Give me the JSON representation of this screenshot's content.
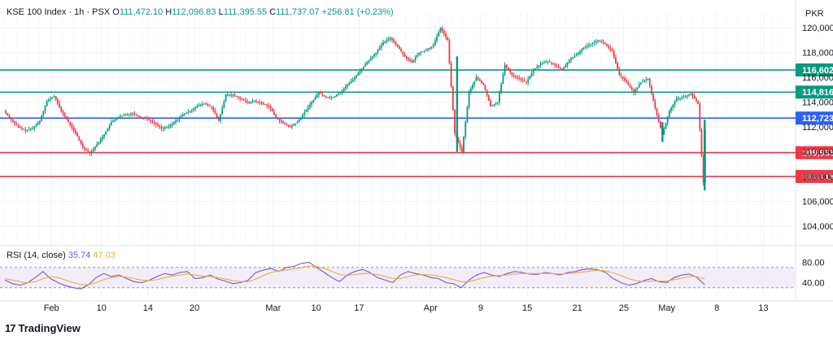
{
  "header": {
    "symbol": "KSE 100 Index · 1h · PSX",
    "open_label": "O",
    "open": "111,472.10",
    "high_label": "H",
    "high": "112,096.83",
    "low_label": "L",
    "low": "111,395.55",
    "close_label": "C",
    "close": "111,737.07",
    "change": "+256.81 (+0.23%)",
    "currency": "PKR"
  },
  "rsi_header": {
    "label": "RSI (14, close)",
    "rsi_value": "35.74",
    "ma_value": "47.03"
  },
  "brand": {
    "name": "TradingView",
    "mark": "17"
  },
  "colors": {
    "up": "#089981",
    "down": "#f23645",
    "green_level": "#089981",
    "blue_level": "#2962ff",
    "red_level": "#f23645",
    "rsi_line": "#7e57c2",
    "rsi_ma": "#e0b43a",
    "rsi_band": "#ede7f6",
    "grid": "#f2f3f5"
  },
  "chart_data": [
    {
      "type": "candlestick",
      "title": "KSE 100 Index · 1h · PSX",
      "ylabel": "PKR",
      "ylim": [
        102700,
        120800
      ],
      "y_ticks": [
        104000,
        106000,
        108000,
        110000,
        112000,
        114000,
        116000,
        118000,
        120000
      ],
      "y_tick_labels": [
        "104,000",
        "106,000",
        "108,000",
        "110,000",
        "112,000",
        "114,000",
        "116,000",
        "118,000",
        "120,000"
      ],
      "x_range": [
        0,
        98
      ],
      "x_ticks": [
        {
          "label": "Feb",
          "t": 6.5
        },
        {
          "label": "10",
          "t": 13.5
        },
        {
          "label": "14",
          "t": 20
        },
        {
          "label": "20",
          "t": 26.5
        },
        {
          "label": "Mar",
          "t": 37.5
        },
        {
          "label": "10",
          "t": 43.5
        },
        {
          "label": "17",
          "t": 49.5
        },
        {
          "label": "Apr",
          "t": 59.5
        },
        {
          "label": "9",
          "t": 66.5
        },
        {
          "label": "15",
          "t": 73
        },
        {
          "label": "21",
          "t": 80
        },
        {
          "label": "25",
          "t": 86.5
        },
        {
          "label": "May",
          "t": 92.5
        },
        {
          "label": "8",
          "t": 99.5
        },
        {
          "label": "13",
          "t": 106
        }
      ],
      "levels": [
        {
          "value": 116602,
          "label": "116,602",
          "color": "green"
        },
        {
          "value": 114816,
          "label": "114,816",
          "color": "green"
        },
        {
          "value": 112723,
          "label": "112,723",
          "color": "blue"
        },
        {
          "value": 109933,
          "label": "109,933",
          "color": "red"
        },
        {
          "value": 108015,
          "label": "108,015",
          "color": "red"
        }
      ],
      "close_path": [
        [
          0,
          113300
        ],
        [
          1,
          112600
        ],
        [
          2,
          112000
        ],
        [
          3,
          111700
        ],
        [
          4,
          111900
        ],
        [
          5,
          112500
        ],
        [
          6,
          114100
        ],
        [
          7,
          114500
        ],
        [
          8,
          113300
        ],
        [
          9,
          112400
        ],
        [
          10,
          111500
        ],
        [
          11,
          110400
        ],
        [
          12,
          109900
        ],
        [
          13,
          110600
        ],
        [
          14,
          111400
        ],
        [
          15,
          112400
        ],
        [
          16,
          112800
        ],
        [
          17,
          113000
        ],
        [
          18,
          113100
        ],
        [
          19,
          112800
        ],
        [
          20,
          112700
        ],
        [
          21,
          112300
        ],
        [
          22,
          111900
        ],
        [
          23,
          112000
        ],
        [
          24,
          112500
        ],
        [
          25,
          113000
        ],
        [
          26,
          113300
        ],
        [
          27,
          113700
        ],
        [
          28,
          113900
        ],
        [
          29,
          113600
        ],
        [
          30,
          112500
        ],
        [
          31,
          114600
        ],
        [
          32,
          114600
        ],
        [
          33,
          114300
        ],
        [
          34,
          114000
        ],
        [
          35,
          114100
        ],
        [
          36,
          113900
        ],
        [
          37,
          113700
        ],
        [
          38,
          112800
        ],
        [
          39,
          112300
        ],
        [
          40,
          112000
        ],
        [
          41,
          112400
        ],
        [
          42,
          113200
        ],
        [
          43,
          114000
        ],
        [
          44,
          114800
        ],
        [
          45,
          114400
        ],
        [
          46,
          114400
        ],
        [
          47,
          114800
        ],
        [
          48,
          115400
        ],
        [
          49,
          116000
        ],
        [
          50,
          116700
        ],
        [
          51,
          117400
        ],
        [
          52,
          118000
        ],
        [
          53,
          118800
        ],
        [
          54,
          119200
        ],
        [
          55,
          118500
        ],
        [
          56,
          117700
        ],
        [
          57,
          117200
        ],
        [
          58,
          118000
        ],
        [
          59,
          118200
        ],
        [
          60,
          118600
        ],
        [
          61,
          120000
        ],
        [
          62,
          119000
        ],
        [
          63,
          111500
        ],
        [
          64,
          110000
        ],
        [
          65,
          114800
        ],
        [
          66,
          116000
        ],
        [
          67,
          115400
        ],
        [
          68,
          113700
        ],
        [
          69,
          114000
        ],
        [
          70,
          117000
        ],
        [
          71,
          116200
        ],
        [
          72,
          115900
        ],
        [
          73,
          115600
        ],
        [
          74,
          116600
        ],
        [
          75,
          117100
        ],
        [
          76,
          117300
        ],
        [
          77,
          117000
        ],
        [
          78,
          116600
        ],
        [
          79,
          117400
        ],
        [
          80,
          117800
        ],
        [
          81,
          118400
        ],
        [
          82,
          118700
        ],
        [
          83,
          119000
        ],
        [
          84,
          118700
        ],
        [
          85,
          118100
        ],
        [
          86,
          116200
        ],
        [
          87,
          115600
        ],
        [
          88,
          114800
        ],
        [
          89,
          115600
        ],
        [
          90,
          115900
        ],
        [
          91,
          113500
        ],
        [
          92,
          111400
        ],
        [
          93,
          113300
        ],
        [
          94,
          114300
        ],
        [
          95,
          114400
        ],
        [
          96,
          114700
        ],
        [
          97,
          113900
        ],
        [
          97.8,
          107100
        ],
        [
          98,
          111737
        ]
      ],
      "wicks": [
        {
          "t": 63.2,
          "high": 117700,
          "low": 110000
        },
        {
          "t": 91.9,
          "high": 112400,
          "low": 110800
        },
        {
          "t": 97.8,
          "high": 112600,
          "low": 106900
        }
      ]
    },
    {
      "type": "line",
      "title": "RSI (14, close)",
      "ylim": [
        20,
        100
      ],
      "y_ticks": [
        40,
        80
      ],
      "y_tick_labels": [
        "40.00",
        "80.00"
      ],
      "band": [
        30,
        70
      ],
      "series": [
        {
          "name": "RSI (14, close)",
          "values": [
            45,
            38,
            35,
            40,
            50,
            62,
            48,
            40,
            34,
            30,
            28,
            36,
            50,
            58,
            52,
            55,
            48,
            42,
            40,
            45,
            52,
            58,
            55,
            60,
            62,
            48,
            50,
            55,
            47,
            43,
            38,
            40,
            45,
            60,
            65,
            68,
            62,
            70,
            72,
            78,
            80,
            70,
            60,
            50,
            42,
            55,
            62,
            66,
            60,
            50,
            45,
            40,
            55,
            62,
            58,
            55,
            50,
            48,
            40,
            38,
            30,
            45,
            55,
            60,
            55,
            52,
            58,
            62,
            60,
            57,
            56,
            60,
            58,
            55,
            60,
            62,
            66,
            67,
            65,
            60,
            48,
            40,
            35,
            38,
            44,
            48,
            42,
            40,
            50,
            55,
            57,
            50,
            36
          ]
        },
        {
          "name": "SMA",
          "values": [
            48,
            45,
            42,
            40,
            42,
            48,
            52,
            50,
            45,
            40,
            36,
            36,
            40,
            46,
            50,
            52,
            51,
            48,
            45,
            44,
            46,
            50,
            53,
            55,
            57,
            55,
            53,
            52,
            50,
            47,
            44,
            42,
            42,
            47,
            54,
            60,
            63,
            65,
            67,
            70,
            73,
            72,
            68,
            62,
            56,
            54,
            56,
            58,
            58,
            56,
            52,
            48,
            48,
            52,
            55,
            56,
            55,
            53,
            50,
            46,
            42,
            42,
            46,
            50,
            53,
            54,
            55,
            57,
            58,
            58,
            58,
            58,
            58,
            57,
            58,
            59,
            61,
            63,
            64,
            63,
            59,
            54,
            48,
            44,
            42,
            43,
            43,
            43,
            46,
            49,
            52,
            52,
            47
          ]
        }
      ]
    }
  ]
}
